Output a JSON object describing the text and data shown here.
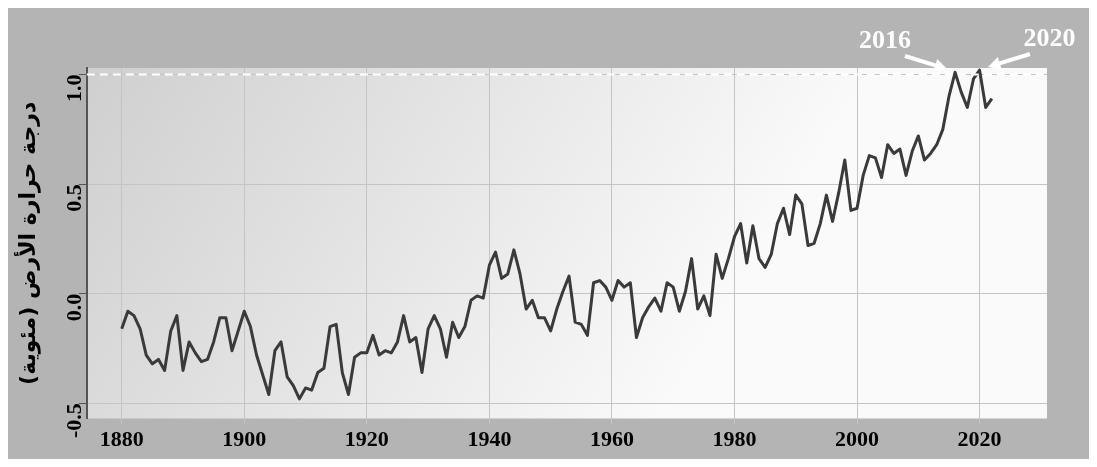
{
  "chart_data": {
    "type": "line",
    "ylabel": "درجة حرارة الأرض (مئوية)",
    "x": [
      1880,
      1881,
      1882,
      1883,
      1884,
      1885,
      1886,
      1887,
      1888,
      1889,
      1890,
      1891,
      1892,
      1893,
      1894,
      1895,
      1896,
      1897,
      1898,
      1899,
      1900,
      1901,
      1902,
      1903,
      1904,
      1905,
      1906,
      1907,
      1908,
      1909,
      1910,
      1911,
      1912,
      1913,
      1914,
      1915,
      1916,
      1917,
      1918,
      1919,
      1920,
      1921,
      1922,
      1923,
      1924,
      1925,
      1926,
      1927,
      1928,
      1929,
      1930,
      1931,
      1932,
      1933,
      1934,
      1935,
      1936,
      1937,
      1938,
      1939,
      1940,
      1941,
      1942,
      1943,
      1944,
      1945,
      1946,
      1947,
      1948,
      1949,
      1950,
      1951,
      1952,
      1953,
      1954,
      1955,
      1956,
      1957,
      1958,
      1959,
      1960,
      1961,
      1962,
      1963,
      1964,
      1965,
      1966,
      1967,
      1968,
      1969,
      1970,
      1971,
      1972,
      1973,
      1974,
      1975,
      1976,
      1977,
      1978,
      1979,
      1980,
      1981,
      1982,
      1983,
      1984,
      1985,
      1986,
      1987,
      1988,
      1989,
      1990,
      1991,
      1992,
      1993,
      1994,
      1995,
      1996,
      1997,
      1998,
      1999,
      2000,
      2001,
      2002,
      2003,
      2004,
      2005,
      2006,
      2007,
      2008,
      2009,
      2010,
      2011,
      2012,
      2013,
      2014,
      2015,
      2016,
      2017,
      2018,
      2019,
      2020,
      2021,
      2022
    ],
    "series": [
      {
        "color": "#3a3a3a",
        "values": [
          -0.16,
          -0.08,
          -0.1,
          -0.16,
          -0.28,
          -0.32,
          -0.3,
          -0.35,
          -0.17,
          -0.1,
          -0.35,
          -0.22,
          -0.27,
          -0.31,
          -0.3,
          -0.22,
          -0.11,
          -0.11,
          -0.26,
          -0.17,
          -0.08,
          -0.15,
          -0.28,
          -0.37,
          -0.46,
          -0.26,
          -0.22,
          -0.38,
          -0.42,
          -0.48,
          -0.43,
          -0.44,
          -0.36,
          -0.34,
          -0.15,
          -0.14,
          -0.36,
          -0.46,
          -0.29,
          -0.27,
          -0.27,
          -0.19,
          -0.28,
          -0.26,
          -0.27,
          -0.22,
          -0.1,
          -0.22,
          -0.2,
          -0.36,
          -0.16,
          -0.1,
          -0.16,
          -0.29,
          -0.13,
          -0.2,
          -0.15,
          -0.03,
          -0.01,
          -0.02,
          0.13,
          0.19,
          0.07,
          0.09,
          0.2,
          0.09,
          -0.07,
          -0.03,
          -0.11,
          -0.11,
          -0.17,
          -0.07,
          0.01,
          0.08,
          -0.13,
          -0.14,
          -0.19,
          0.05,
          0.06,
          0.03,
          -0.03,
          0.06,
          0.03,
          0.05,
          -0.2,
          -0.11,
          -0.06,
          -0.02,
          -0.08,
          0.05,
          0.03,
          -0.08,
          0.01,
          0.16,
          -0.07,
          -0.01,
          -0.1,
          0.18,
          0.07,
          0.16,
          0.26,
          0.32,
          0.14,
          0.31,
          0.16,
          0.12,
          0.18,
          0.32,
          0.39,
          0.27,
          0.45,
          0.41,
          0.22,
          0.23,
          0.32,
          0.45,
          0.33,
          0.46,
          0.61,
          0.38,
          0.39,
          0.54,
          0.63,
          0.62,
          0.53,
          0.68,
          0.64,
          0.66,
          0.54,
          0.65,
          0.72,
          0.61,
          0.64,
          0.68,
          0.75,
          0.9,
          1.01,
          0.92,
          0.85,
          0.98,
          1.02,
          0.85,
          0.89
        ]
      }
    ],
    "xlim": [
      1874.3,
      2031
    ],
    "ylim": [
      -0.57,
      1.03
    ],
    "xticks": [
      1880,
      1900,
      1920,
      1940,
      1960,
      1980,
      2000,
      2020
    ],
    "yticks": [
      {
        "value": -0.5,
        "label": "-0.5"
      },
      {
        "value": 0,
        "label": "0.0"
      },
      {
        "value": 0.5,
        "label": "0.5"
      },
      {
        "value": 1,
        "label": "1.0"
      }
    ],
    "ref_lines": [
      {
        "axis": "y",
        "value": 1,
        "color": "#ffffff",
        "line_style": "dashed"
      }
    ],
    "annotations": [
      {
        "text": "2016",
        "x": 2016,
        "y": 1.01
      },
      {
        "text": "2020",
        "x": 2020,
        "y": 1.02
      }
    ],
    "grid": true,
    "legend": false,
    "marker": "none",
    "line_style": "solid"
  }
}
